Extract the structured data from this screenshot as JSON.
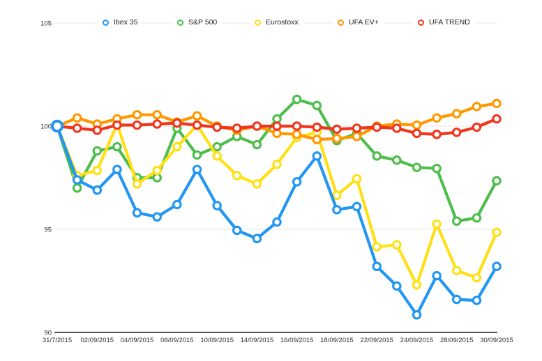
{
  "chart_data": {
    "type": "line",
    "title": "",
    "xlabel": "",
    "ylabel": "",
    "legend_position": "top",
    "grid": "horizontal",
    "ylim": [
      90,
      105
    ],
    "y_ticks": [
      105,
      100,
      95,
      90
    ],
    "n_points": 23,
    "x_tick_every": 2,
    "x_tick_labels": [
      "31/7/2015",
      "02/09/2015",
      "04/09/2015",
      "08/09/2015",
      "10/09/2015",
      "14/09/2015",
      "16/09/2015",
      "18/09/2015",
      "22/09/2015",
      "24/09/2015",
      "28/09/2015",
      "30/09/2015"
    ],
    "series": [
      {
        "name": "Ibex 35",
        "color": "#2196F3",
        "values": [
          100,
          97.4,
          96.9,
          97.9,
          95.8,
          95.6,
          96.2,
          97.9,
          96.15,
          94.95,
          94.55,
          95.35,
          97.3,
          98.55,
          95.95,
          96.1,
          93.2,
          92.25,
          90.85,
          92.75,
          91.6,
          91.55,
          93.2
        ]
      },
      {
        "name": "S&P 500",
        "color": "#4DBE4B",
        "values": [
          100,
          97.0,
          98.8,
          99.0,
          97.5,
          97.5,
          99.9,
          98.6,
          99.0,
          99.5,
          99.1,
          100.35,
          101.3,
          101.0,
          99.3,
          99.65,
          98.55,
          98.35,
          98.0,
          97.95,
          95.4,
          95.55,
          97.35
        ]
      },
      {
        "name": "Eurostoxx",
        "color": "#FFE014",
        "values": [
          100,
          97.6,
          97.85,
          100.1,
          97.2,
          97.85,
          99.0,
          100.05,
          98.55,
          97.6,
          97.2,
          98.15,
          99.45,
          99.7,
          96.65,
          97.45,
          94.15,
          94.25,
          92.3,
          95.25,
          93.0,
          92.65,
          94.85
        ]
      },
      {
        "name": "UFA EV+",
        "color": "#FF9800",
        "values": [
          100,
          100.4,
          100.1,
          100.35,
          100.55,
          100.55,
          100.2,
          100.5,
          100.0,
          99.8,
          100.0,
          99.65,
          99.6,
          99.35,
          99.4,
          99.5,
          100.0,
          100.1,
          100.05,
          100.4,
          100.6,
          100.95,
          101.1
        ]
      },
      {
        "name": "UFA TREND",
        "color": "#F1351C",
        "values": [
          100,
          99.9,
          99.8,
          100.05,
          100.05,
          100.1,
          100.15,
          100.05,
          99.95,
          99.9,
          100.0,
          100.0,
          100.0,
          99.95,
          99.85,
          99.9,
          99.95,
          99.9,
          99.65,
          99.6,
          99.7,
          99.95,
          100.35
        ]
      }
    ],
    "style": {
      "gridline_color": "#E7E7E7",
      "axis_line_color": "#1a1a1a",
      "marker": "open-circle"
    }
  }
}
